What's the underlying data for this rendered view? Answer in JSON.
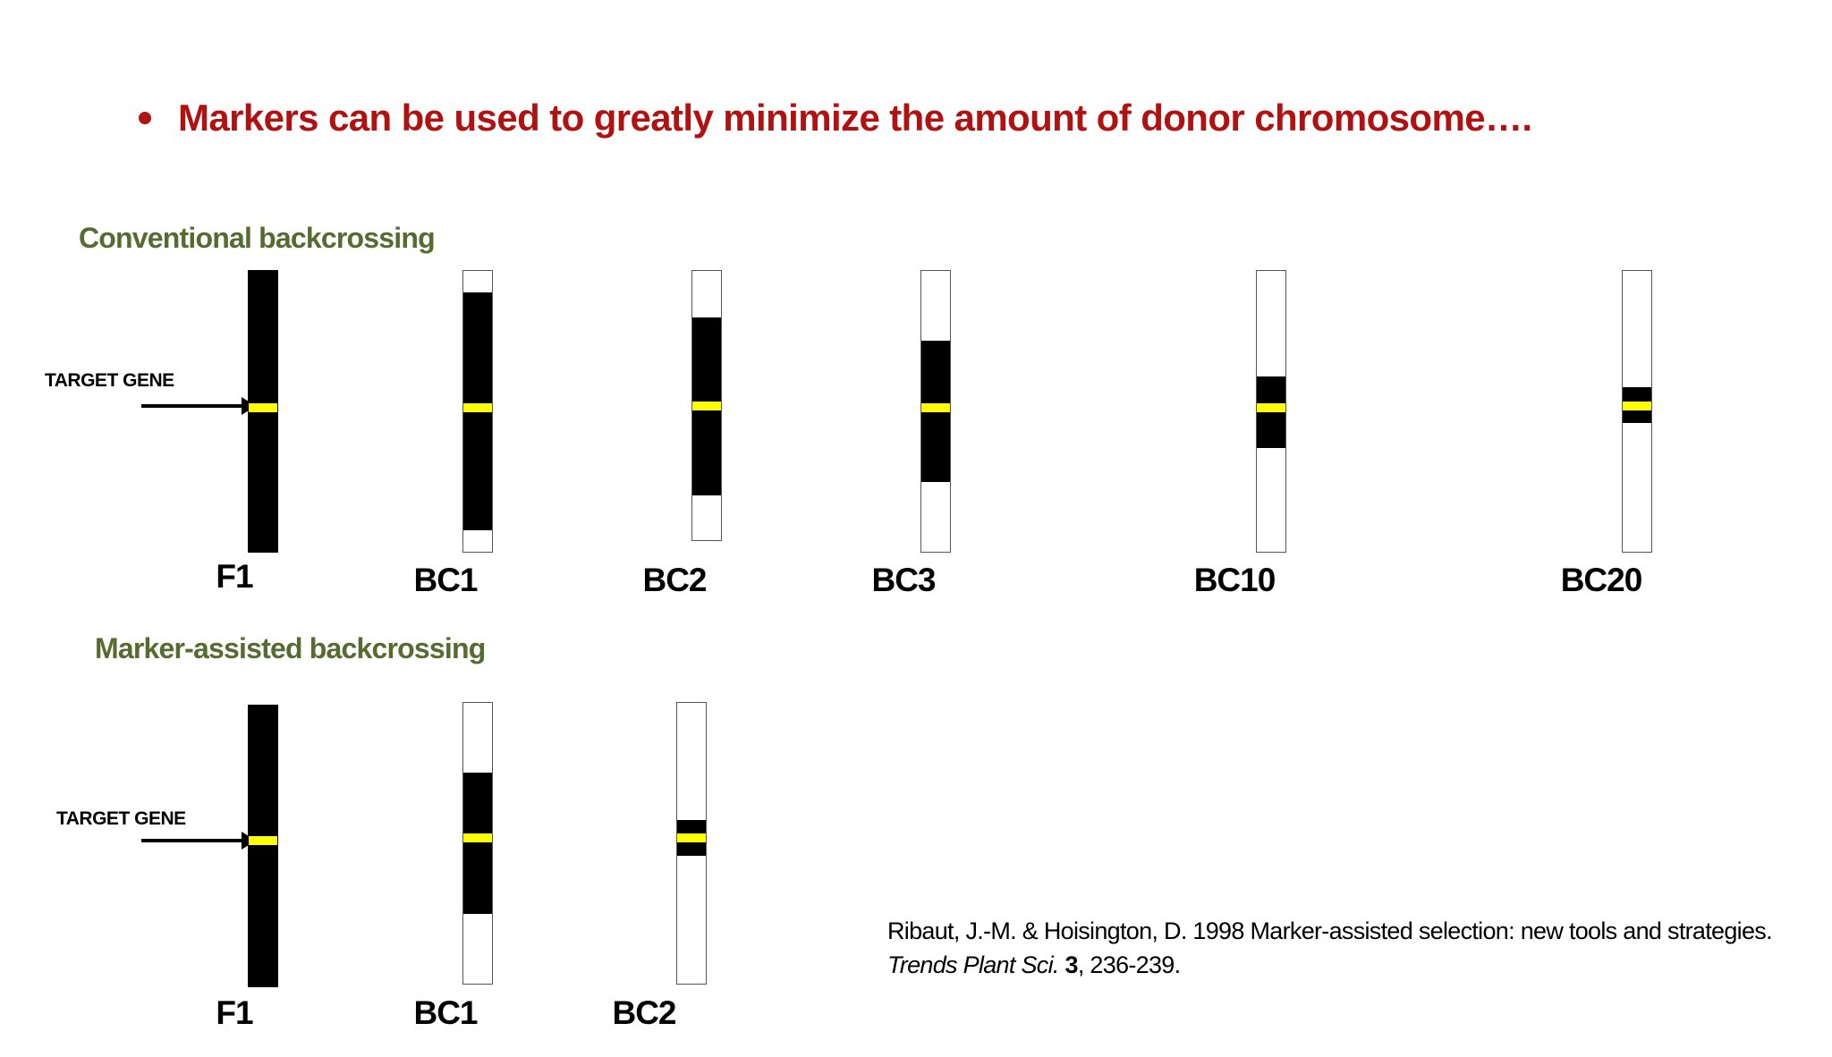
{
  "title": "Markers can be used to greatly minimize the amount of donor chromosome….",
  "colors": {
    "title": "#b01212",
    "heading": "#556b2f",
    "donor_segment": "#000000",
    "target_gene": "#ffff00"
  },
  "sections": [
    {
      "heading": "Conventional backcrossing",
      "gene_label": "TARGET GENE",
      "generations": [
        {
          "label": "F1",
          "donor_fraction": 1.0
        },
        {
          "label": "BC1",
          "donor_fraction": 0.84
        },
        {
          "label": "BC2",
          "donor_fraction": 0.63
        },
        {
          "label": "BC3",
          "donor_fraction": 0.5
        },
        {
          "label": "BC10",
          "donor_fraction": 0.25
        },
        {
          "label": "BC20",
          "donor_fraction": 0.13
        }
      ]
    },
    {
      "heading": "Marker-assisted backcrossing",
      "gene_label": "TARGET GENE",
      "generations": [
        {
          "label": "F1",
          "donor_fraction": 1.0
        },
        {
          "label": "BC1",
          "donor_fraction": 0.5
        },
        {
          "label": "BC2",
          "donor_fraction": 0.13
        }
      ]
    }
  ],
  "citation": {
    "authors_text": "Ribaut, J.-M. & Hoisington, D. 1998 Marker-assisted selection: new tools and strategies. ",
    "journal": "Trends Plant Sci.",
    "volume": "3",
    "pages": ", 236-239."
  }
}
